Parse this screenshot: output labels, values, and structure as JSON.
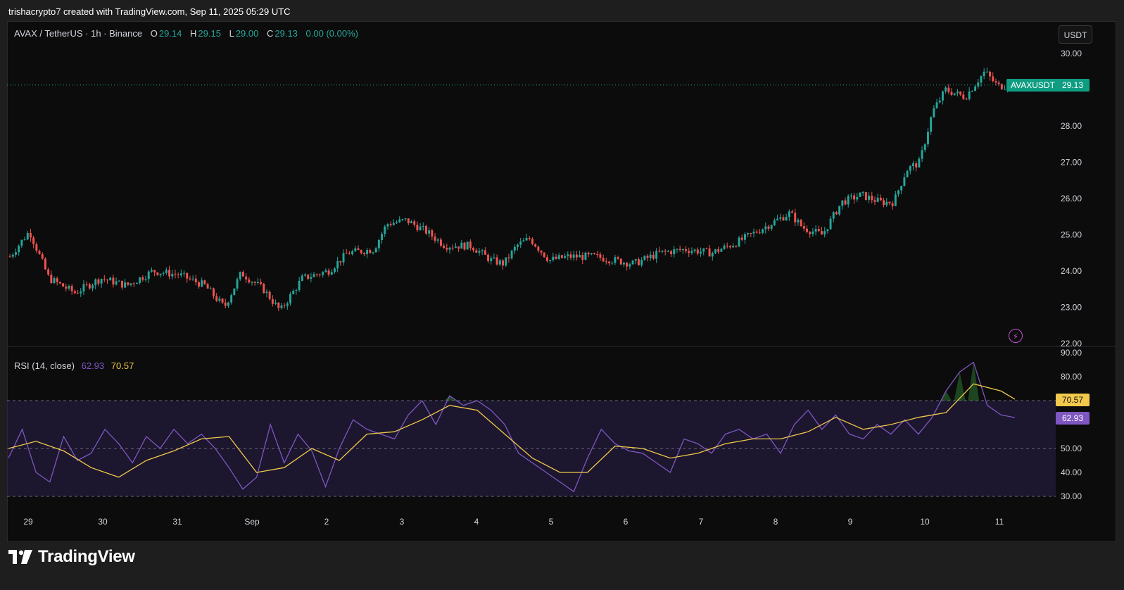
{
  "header": {
    "credit": "trishacrypto7 created with TradingView.com, Sep 11, 2025 05:29 UTC"
  },
  "legend": {
    "symbol": "AVAX / TetherUS · 1h · Binance",
    "o_label": "O",
    "o": "29.14",
    "h_label": "H",
    "h": "29.15",
    "l_label": "L",
    "l": "29.00",
    "c_label": "C",
    "c": "29.13",
    "change": "0.00 (0.00%)"
  },
  "rsi_legend": {
    "name": "RSI (14, close)",
    "rsi": "62.93",
    "ma": "70.57"
  },
  "unit_button": "USDT",
  "price_tag": {
    "symbol": "AVAXUSDT",
    "value": "29.13"
  },
  "rsi_tags": {
    "ma": "70.57",
    "rsi": "62.93"
  },
  "brand": "TradingView",
  "colors": {
    "up": "#26a69a",
    "down": "#ef5350",
    "rsi": "#7e57c2",
    "rsi_ma": "#f2c94c",
    "price_line": "#26a69a"
  },
  "chart_data": [
    {
      "type": "candlestick",
      "title": "AVAX / TetherUS · 1h · Binance",
      "ylabel": "USDT",
      "ylim": [
        22.0,
        30.0
      ],
      "y_ticks": [
        "30.00",
        "28.00",
        "27.00",
        "26.00",
        "25.00",
        "24.00",
        "23.00",
        "22.00"
      ],
      "x_ticks": [
        "29",
        "30",
        "31",
        "Sep",
        "2",
        "3",
        "4",
        "5",
        "6",
        "7",
        "8",
        "9",
        "10",
        "11"
      ],
      "last_price": 29.13,
      "close_path": [
        [
          0,
          24.4
        ],
        [
          1.5,
          25.1
        ],
        [
          3,
          23.8
        ],
        [
          5,
          23.4
        ],
        [
          7,
          23.8
        ],
        [
          9,
          23.6
        ],
        [
          11,
          24.0
        ],
        [
          13,
          23.9
        ],
        [
          15,
          23.6
        ],
        [
          16.5,
          23.0
        ],
        [
          17.8,
          23.95
        ],
        [
          19.5,
          23.5
        ],
        [
          20.8,
          22.9
        ],
        [
          22.5,
          23.8
        ],
        [
          24.5,
          24.0
        ],
        [
          26,
          24.5
        ],
        [
          28,
          24.6
        ],
        [
          29,
          25.3
        ],
        [
          30.5,
          25.4
        ],
        [
          32,
          25.1
        ],
        [
          33.5,
          24.7
        ],
        [
          35.5,
          24.7
        ],
        [
          37,
          24.3
        ],
        [
          38,
          24.2
        ],
        [
          39,
          24.7
        ],
        [
          40,
          24.9
        ],
        [
          41.5,
          24.3
        ],
        [
          43,
          24.4
        ],
        [
          45,
          24.4
        ],
        [
          46.5,
          24.3
        ],
        [
          48,
          24.2
        ],
        [
          50,
          24.5
        ],
        [
          52,
          24.6
        ],
        [
          54,
          24.5
        ],
        [
          56,
          24.8
        ],
        [
          58,
          25.2
        ],
        [
          60,
          25.6
        ],
        [
          61,
          25.2
        ],
        [
          62.5,
          25.0
        ],
        [
          64,
          25.9
        ],
        [
          65.5,
          26.1
        ],
        [
          67,
          25.9
        ],
        [
          68,
          25.9
        ],
        [
          69,
          26.8
        ],
        [
          70,
          27.0
        ],
        [
          71,
          28.4
        ],
        [
          72,
          29.0
        ],
        [
          73.5,
          28.8
        ],
        [
          75,
          29.5
        ],
        [
          76,
          29.1
        ],
        [
          77,
          29.13
        ]
      ]
    },
    {
      "type": "line",
      "title": "RSI (14, close)",
      "ylim": [
        30,
        90
      ],
      "y_ticks": [
        "90.00",
        "80.00",
        "70.57",
        "62.93",
        "50.00",
        "40.00",
        "30.00"
      ],
      "bands": [
        30,
        50,
        70
      ],
      "series": [
        {
          "name": "RSI (14, close)",
          "color": "#7e57c2",
          "values": [
            [
              0,
              46
            ],
            [
              1,
              58
            ],
            [
              2,
              40
            ],
            [
              3,
              36
            ],
            [
              4,
              55
            ],
            [
              5,
              45
            ],
            [
              6,
              48
            ],
            [
              7,
              58
            ],
            [
              8,
              52
            ],
            [
              9,
              44
            ],
            [
              10,
              55
            ],
            [
              11,
              50
            ],
            [
              12,
              58
            ],
            [
              13,
              52
            ],
            [
              14,
              56
            ],
            [
              15,
              50
            ],
            [
              16,
              42
            ],
            [
              17,
              33
            ],
            [
              18,
              38
            ],
            [
              19,
              60
            ],
            [
              20,
              44
            ],
            [
              21,
              56
            ],
            [
              22,
              49
            ],
            [
              23,
              34
            ],
            [
              24,
              50
            ],
            [
              25,
              62
            ],
            [
              26,
              58
            ],
            [
              27,
              56
            ],
            [
              28,
              54
            ],
            [
              29,
              64
            ],
            [
              30,
              70
            ],
            [
              31,
              60
            ],
            [
              32,
              72
            ],
            [
              33,
              68
            ],
            [
              34,
              70
            ],
            [
              35,
              66
            ],
            [
              36,
              60
            ],
            [
              37,
              48
            ],
            [
              38,
              44
            ],
            [
              39,
              40
            ],
            [
              40,
              36
            ],
            [
              41,
              32
            ],
            [
              42,
              46
            ],
            [
              43,
              58
            ],
            [
              44,
              52
            ],
            [
              45,
              49
            ],
            [
              46,
              48
            ],
            [
              47,
              44
            ],
            [
              48,
              40
            ],
            [
              49,
              54
            ],
            [
              50,
              52
            ],
            [
              51,
              48
            ],
            [
              52,
              56
            ],
            [
              53,
              58
            ],
            [
              54,
              54
            ],
            [
              55,
              56
            ],
            [
              56,
              48
            ],
            [
              57,
              60
            ],
            [
              58,
              66
            ],
            [
              59,
              58
            ],
            [
              60,
              64
            ],
            [
              61,
              56
            ],
            [
              62,
              54
            ],
            [
              63,
              60
            ],
            [
              64,
              56
            ],
            [
              65,
              62
            ],
            [
              66,
              56
            ],
            [
              67,
              63
            ],
            [
              68,
              74
            ],
            [
              69,
              82
            ],
            [
              70,
              86
            ],
            [
              71,
              68
            ],
            [
              72,
              64
            ],
            [
              73,
              62.93
            ]
          ]
        },
        {
          "name": "RSI MA",
          "color": "#f2c94c",
          "values": [
            [
              0,
              50
            ],
            [
              2,
              53
            ],
            [
              4,
              49
            ],
            [
              6,
              42
            ],
            [
              8,
              38
            ],
            [
              10,
              45
            ],
            [
              12,
              49
            ],
            [
              14,
              54
            ],
            [
              16,
              55
            ],
            [
              18,
              40
            ],
            [
              20,
              42
            ],
            [
              22,
              50
            ],
            [
              24,
              45
            ],
            [
              26,
              56
            ],
            [
              28,
              57
            ],
            [
              30,
              62
            ],
            [
              32,
              68
            ],
            [
              34,
              66
            ],
            [
              36,
              56
            ],
            [
              38,
              46
            ],
            [
              40,
              40
            ],
            [
              42,
              40
            ],
            [
              44,
              51
            ],
            [
              46,
              50
            ],
            [
              48,
              46
            ],
            [
              50,
              48
            ],
            [
              52,
              52
            ],
            [
              54,
              54
            ],
            [
              56,
              54
            ],
            [
              58,
              57
            ],
            [
              60,
              63
            ],
            [
              62,
              58
            ],
            [
              64,
              60
            ],
            [
              66,
              63
            ],
            [
              68,
              65
            ],
            [
              70,
              77
            ],
            [
              72,
              74
            ],
            [
              73,
              70.57
            ]
          ]
        }
      ]
    }
  ]
}
